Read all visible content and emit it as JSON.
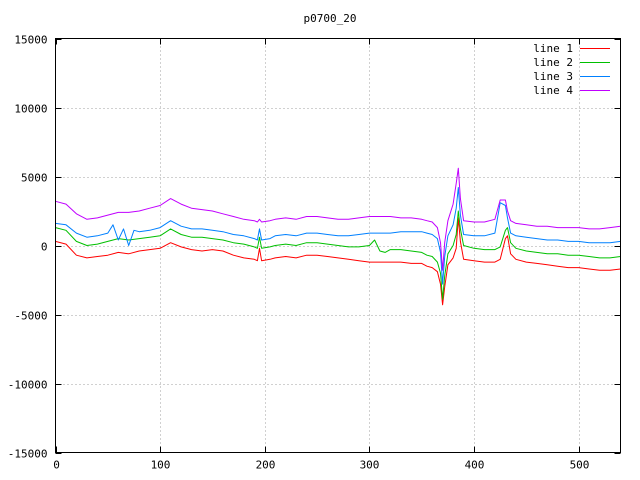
{
  "chart_data": {
    "type": "line",
    "title": "p0700_20",
    "xlabel": "",
    "ylabel": "",
    "xlim": [
      0,
      540
    ],
    "ylim": [
      -15000,
      15000
    ],
    "xticks": [
      0,
      100,
      200,
      300,
      400,
      500
    ],
    "yticks": [
      -15000,
      -10000,
      -5000,
      0,
      5000,
      10000,
      15000
    ],
    "grid": true,
    "legend_position": "top-right",
    "series": [
      {
        "name": "line 1",
        "color": "#ff0000",
        "points": [
          [
            0,
            300
          ],
          [
            10,
            100
          ],
          [
            20,
            -700
          ],
          [
            30,
            -900
          ],
          [
            40,
            -800
          ],
          [
            50,
            -700
          ],
          [
            60,
            -500
          ],
          [
            70,
            -600
          ],
          [
            80,
            -400
          ],
          [
            90,
            -300
          ],
          [
            100,
            -200
          ],
          [
            110,
            200
          ],
          [
            120,
            -100
          ],
          [
            130,
            -300
          ],
          [
            140,
            -400
          ],
          [
            150,
            -300
          ],
          [
            160,
            -400
          ],
          [
            170,
            -700
          ],
          [
            180,
            -900
          ],
          [
            190,
            -1000
          ],
          [
            193,
            -1100
          ],
          [
            195,
            -200
          ],
          [
            197,
            -1100
          ],
          [
            205,
            -1000
          ],
          [
            210,
            -900
          ],
          [
            220,
            -800
          ],
          [
            230,
            -900
          ],
          [
            240,
            -700
          ],
          [
            250,
            -700
          ],
          [
            260,
            -800
          ],
          [
            270,
            -900
          ],
          [
            280,
            -1000
          ],
          [
            290,
            -1100
          ],
          [
            300,
            -1200
          ],
          [
            310,
            -1200
          ],
          [
            320,
            -1200
          ],
          [
            330,
            -1200
          ],
          [
            340,
            -1300
          ],
          [
            350,
            -1300
          ],
          [
            355,
            -1500
          ],
          [
            360,
            -1600
          ],
          [
            365,
            -1900
          ],
          [
            368,
            -2800
          ],
          [
            370,
            -4300
          ],
          [
            372,
            -3000
          ],
          [
            375,
            -1400
          ],
          [
            380,
            -900
          ],
          [
            383,
            -200
          ],
          [
            385,
            2000
          ],
          [
            387,
            300
          ],
          [
            390,
            -1000
          ],
          [
            400,
            -1100
          ],
          [
            410,
            -1200
          ],
          [
            420,
            -1200
          ],
          [
            425,
            -1000
          ],
          [
            430,
            500
          ],
          [
            432,
            700
          ],
          [
            435,
            -600
          ],
          [
            440,
            -1000
          ],
          [
            450,
            -1200
          ],
          [
            460,
            -1300
          ],
          [
            470,
            -1400
          ],
          [
            480,
            -1500
          ],
          [
            490,
            -1600
          ],
          [
            500,
            -1600
          ],
          [
            510,
            -1700
          ],
          [
            520,
            -1800
          ],
          [
            530,
            -1800
          ],
          [
            540,
            -1700
          ]
        ]
      },
      {
        "name": "line 2",
        "color": "#00c000",
        "points": [
          [
            0,
            1300
          ],
          [
            10,
            1100
          ],
          [
            20,
            300
          ],
          [
            30,
            0
          ],
          [
            40,
            100
          ],
          [
            50,
            300
          ],
          [
            60,
            500
          ],
          [
            70,
            400
          ],
          [
            80,
            500
          ],
          [
            90,
            600
          ],
          [
            100,
            700
          ],
          [
            110,
            1200
          ],
          [
            120,
            800
          ],
          [
            130,
            600
          ],
          [
            140,
            600
          ],
          [
            150,
            500
          ],
          [
            160,
            400
          ],
          [
            170,
            200
          ],
          [
            180,
            100
          ],
          [
            190,
            -100
          ],
          [
            193,
            -200
          ],
          [
            195,
            600
          ],
          [
            197,
            -200
          ],
          [
            205,
            -100
          ],
          [
            210,
            0
          ],
          [
            220,
            100
          ],
          [
            230,
            0
          ],
          [
            240,
            200
          ],
          [
            250,
            200
          ],
          [
            260,
            100
          ],
          [
            270,
            0
          ],
          [
            280,
            -100
          ],
          [
            290,
            -100
          ],
          [
            300,
            0
          ],
          [
            305,
            400
          ],
          [
            310,
            -400
          ],
          [
            315,
            -500
          ],
          [
            320,
            -300
          ],
          [
            330,
            -300
          ],
          [
            340,
            -400
          ],
          [
            350,
            -500
          ],
          [
            355,
            -700
          ],
          [
            360,
            -800
          ],
          [
            365,
            -1200
          ],
          [
            368,
            -2000
          ],
          [
            370,
            -3900
          ],
          [
            372,
            -2200
          ],
          [
            375,
            -600
          ],
          [
            380,
            0
          ],
          [
            383,
            800
          ],
          [
            385,
            2500
          ],
          [
            387,
            1200
          ],
          [
            390,
            0
          ],
          [
            400,
            -200
          ],
          [
            410,
            -300
          ],
          [
            420,
            -300
          ],
          [
            425,
            -100
          ],
          [
            430,
            1100
          ],
          [
            432,
            1300
          ],
          [
            435,
            200
          ],
          [
            440,
            -200
          ],
          [
            450,
            -400
          ],
          [
            460,
            -500
          ],
          [
            470,
            -600
          ],
          [
            480,
            -600
          ],
          [
            490,
            -700
          ],
          [
            500,
            -700
          ],
          [
            510,
            -800
          ],
          [
            520,
            -900
          ],
          [
            530,
            -900
          ],
          [
            540,
            -800
          ]
        ]
      },
      {
        "name": "line 3",
        "color": "#0080ff",
        "points": [
          [
            0,
            1600
          ],
          [
            10,
            1500
          ],
          [
            20,
            900
          ],
          [
            30,
            600
          ],
          [
            40,
            700
          ],
          [
            50,
            900
          ],
          [
            55,
            1500
          ],
          [
            60,
            400
          ],
          [
            65,
            1200
          ],
          [
            70,
            0
          ],
          [
            75,
            1100
          ],
          [
            80,
            1000
          ],
          [
            90,
            1100
          ],
          [
            100,
            1300
          ],
          [
            110,
            1800
          ],
          [
            120,
            1400
          ],
          [
            130,
            1200
          ],
          [
            140,
            1200
          ],
          [
            150,
            1100
          ],
          [
            160,
            1000
          ],
          [
            170,
            800
          ],
          [
            180,
            700
          ],
          [
            190,
            500
          ],
          [
            193,
            400
          ],
          [
            195,
            1200
          ],
          [
            197,
            400
          ],
          [
            205,
            500
          ],
          [
            210,
            700
          ],
          [
            220,
            800
          ],
          [
            230,
            700
          ],
          [
            240,
            900
          ],
          [
            250,
            900
          ],
          [
            260,
            800
          ],
          [
            270,
            700
          ],
          [
            280,
            700
          ],
          [
            290,
            800
          ],
          [
            300,
            900
          ],
          [
            310,
            900
          ],
          [
            320,
            900
          ],
          [
            330,
            1000
          ],
          [
            340,
            1000
          ],
          [
            350,
            1000
          ],
          [
            355,
            900
          ],
          [
            360,
            800
          ],
          [
            365,
            500
          ],
          [
            368,
            -500
          ],
          [
            370,
            -2800
          ],
          [
            372,
            -800
          ],
          [
            375,
            700
          ],
          [
            380,
            1500
          ],
          [
            383,
            2700
          ],
          [
            385,
            4200
          ],
          [
            387,
            2200
          ],
          [
            390,
            800
          ],
          [
            400,
            700
          ],
          [
            410,
            700
          ],
          [
            420,
            900
          ],
          [
            425,
            3100
          ],
          [
            430,
            2900
          ],
          [
            432,
            2000
          ],
          [
            435,
            900
          ],
          [
            440,
            700
          ],
          [
            450,
            600
          ],
          [
            460,
            500
          ],
          [
            470,
            400
          ],
          [
            480,
            400
          ],
          [
            490,
            300
          ],
          [
            500,
            300
          ],
          [
            510,
            200
          ],
          [
            520,
            200
          ],
          [
            530,
            200
          ],
          [
            540,
            300
          ]
        ]
      },
      {
        "name": "line 4",
        "color": "#c000ff",
        "points": [
          [
            0,
            3200
          ],
          [
            10,
            3000
          ],
          [
            20,
            2300
          ],
          [
            30,
            1900
          ],
          [
            40,
            2000
          ],
          [
            50,
            2200
          ],
          [
            60,
            2400
          ],
          [
            70,
            2400
          ],
          [
            80,
            2500
          ],
          [
            90,
            2700
          ],
          [
            100,
            2900
          ],
          [
            110,
            3400
          ],
          [
            120,
            3000
          ],
          [
            130,
            2700
          ],
          [
            140,
            2600
          ],
          [
            150,
            2500
          ],
          [
            160,
            2300
          ],
          [
            170,
            2100
          ],
          [
            180,
            1900
          ],
          [
            190,
            1800
          ],
          [
            193,
            1700
          ],
          [
            195,
            1900
          ],
          [
            197,
            1700
          ],
          [
            205,
            1800
          ],
          [
            210,
            1900
          ],
          [
            220,
            2000
          ],
          [
            230,
            1900
          ],
          [
            240,
            2100
          ],
          [
            250,
            2100
          ],
          [
            260,
            2000
          ],
          [
            270,
            1900
          ],
          [
            280,
            1900
          ],
          [
            290,
            2000
          ],
          [
            300,
            2100
          ],
          [
            310,
            2100
          ],
          [
            320,
            2100
          ],
          [
            330,
            2000
          ],
          [
            340,
            2000
          ],
          [
            350,
            1900
          ],
          [
            355,
            1800
          ],
          [
            360,
            1700
          ],
          [
            365,
            1300
          ],
          [
            368,
            200
          ],
          [
            370,
            -1800
          ],
          [
            372,
            200
          ],
          [
            375,
            1800
          ],
          [
            380,
            3000
          ],
          [
            383,
            4500
          ],
          [
            385,
            5600
          ],
          [
            387,
            3400
          ],
          [
            390,
            1800
          ],
          [
            400,
            1700
          ],
          [
            410,
            1700
          ],
          [
            420,
            1900
          ],
          [
            425,
            3300
          ],
          [
            430,
            3300
          ],
          [
            432,
            2500
          ],
          [
            435,
            1800
          ],
          [
            440,
            1600
          ],
          [
            450,
            1500
          ],
          [
            460,
            1400
          ],
          [
            470,
            1400
          ],
          [
            480,
            1300
          ],
          [
            490,
            1300
          ],
          [
            500,
            1300
          ],
          [
            510,
            1200
          ],
          [
            520,
            1200
          ],
          [
            530,
            1300
          ],
          [
            540,
            1400
          ]
        ]
      }
    ]
  }
}
